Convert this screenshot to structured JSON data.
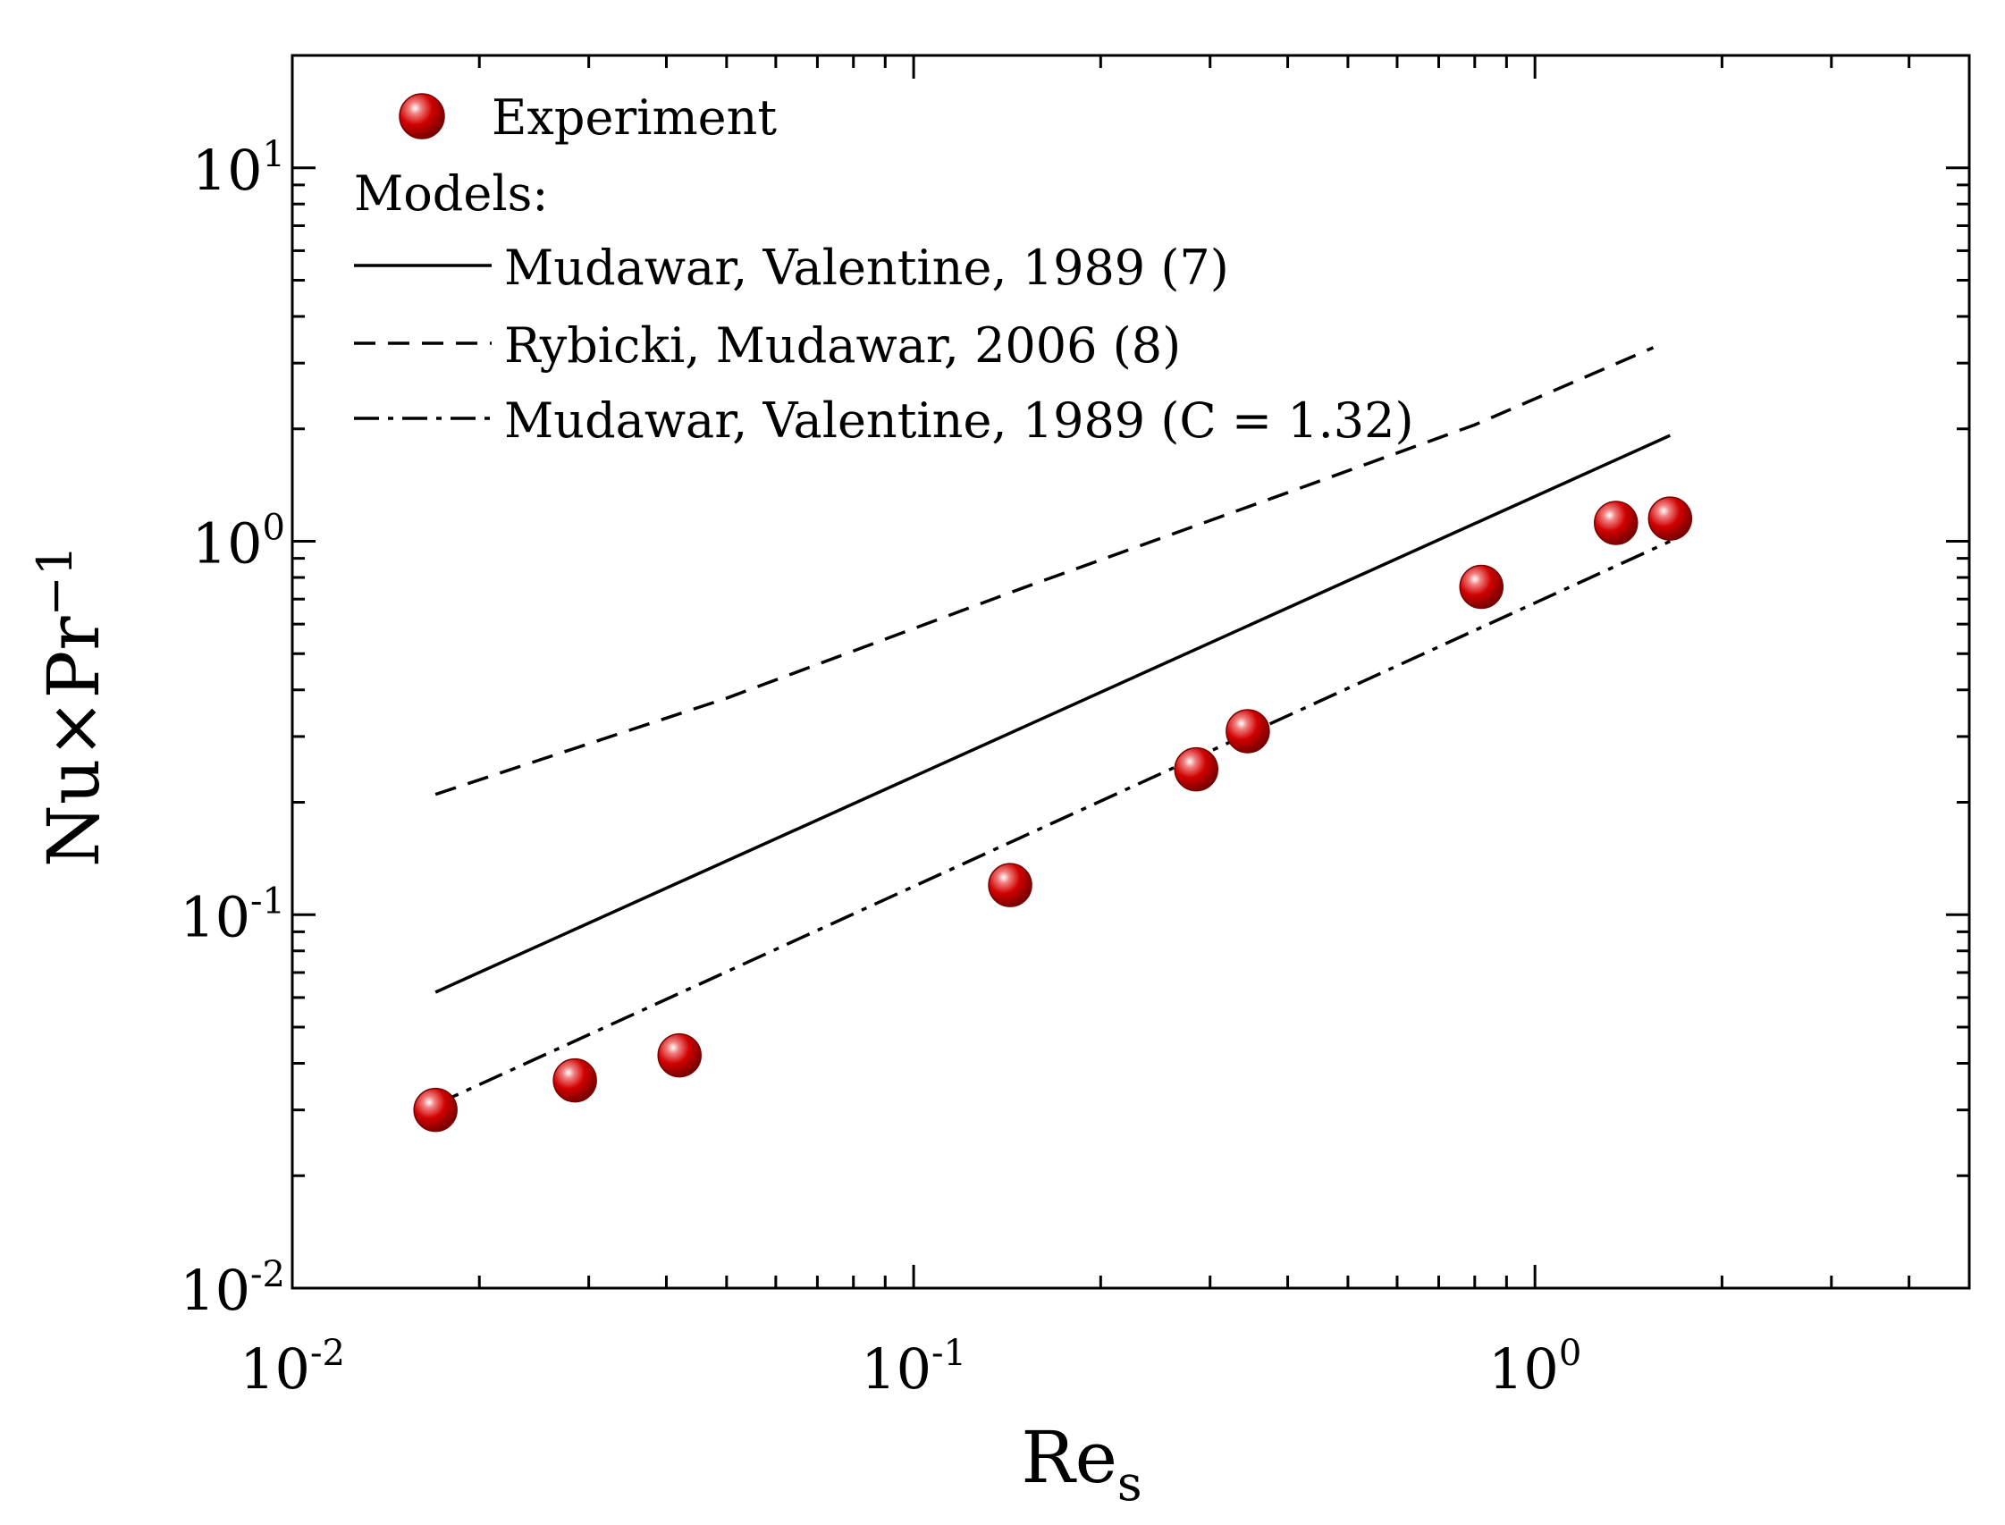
{
  "chart_data": {
    "type": "scatter",
    "xscale": "log",
    "yscale": "log",
    "xlim": [
      0.01,
      5
    ],
    "ylim": [
      0.01,
      20
    ],
    "xlabel": {
      "main": "Re",
      "sub": "s"
    },
    "ylabel": {
      "main": "Nu×Pr",
      "sup": "−1"
    },
    "x_ticks": [
      {
        "base": "10",
        "exp": "-2",
        "value": 0.01
      },
      {
        "base": "10",
        "exp": "-1",
        "value": 0.1
      },
      {
        "base": "10",
        "exp": "0",
        "value": 1
      }
    ],
    "y_ticks": [
      {
        "base": "10",
        "exp": "-2",
        "value": 0.01
      },
      {
        "base": "10",
        "exp": "-1",
        "value": 0.1
      },
      {
        "base": "10",
        "exp": "0",
        "value": 1
      },
      {
        "base": "10",
        "exp": "1",
        "value": 10
      }
    ],
    "legend": {
      "placement": "top-left",
      "models_heading": "Models:"
    },
    "series": [
      {
        "name": "Experiment",
        "kind": "marker",
        "color": "#cc0000",
        "x": [
          0.017,
          0.0285,
          0.042,
          0.143,
          0.285,
          0.345,
          0.82,
          1.35,
          1.65
        ],
        "y": [
          0.03,
          0.036,
          0.042,
          0.12,
          0.245,
          0.31,
          0.755,
          1.12,
          1.15
        ]
      },
      {
        "name": "Mudawar, Valentine, 1989 (7)",
        "kind": "line",
        "style": "solid",
        "color": "#000000",
        "x": [
          0.017,
          1.65
        ],
        "y": [
          0.062,
          1.92
        ]
      },
      {
        "name": "Rybicki, Mudawar, 2006 (8)",
        "kind": "line",
        "style": "dashed",
        "color": "#000000",
        "x": [
          0.017,
          0.05,
          0.15,
          0.4,
          0.8,
          1.55
        ],
        "y": [
          0.21,
          0.38,
          0.75,
          1.35,
          2.05,
          3.3
        ]
      },
      {
        "name": "Mudawar, Valentine, 1989 (C = 1.32)",
        "kind": "line",
        "style": "dashdot",
        "color": "#000000",
        "x": [
          0.017,
          1.65
        ],
        "y": [
          0.031,
          1.0
        ]
      }
    ]
  }
}
